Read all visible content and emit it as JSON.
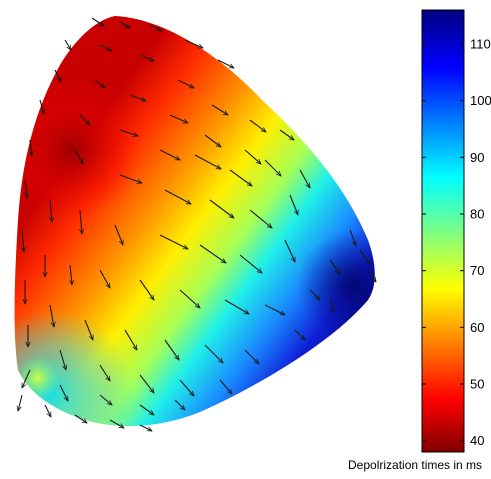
{
  "chart_data": {
    "type": "heatmap",
    "title": "",
    "colormap": "jet",
    "colorbar": {
      "label": "Depolrization times in ms",
      "range": [
        38,
        116
      ],
      "ticks": [
        40,
        50,
        60,
        70,
        80,
        90,
        100,
        110
      ],
      "tick_labels": [
        "40",
        "50",
        "60",
        "70",
        "80",
        "90",
        "100",
        "110"
      ],
      "placement": "right"
    },
    "surface": {
      "description_value_range_ms": [
        40,
        116
      ],
      "earliest_region_value_ms": 40,
      "latest_region_value_ms": 116,
      "overlay": "propagation vector arrows"
    },
    "grid": false
  }
}
